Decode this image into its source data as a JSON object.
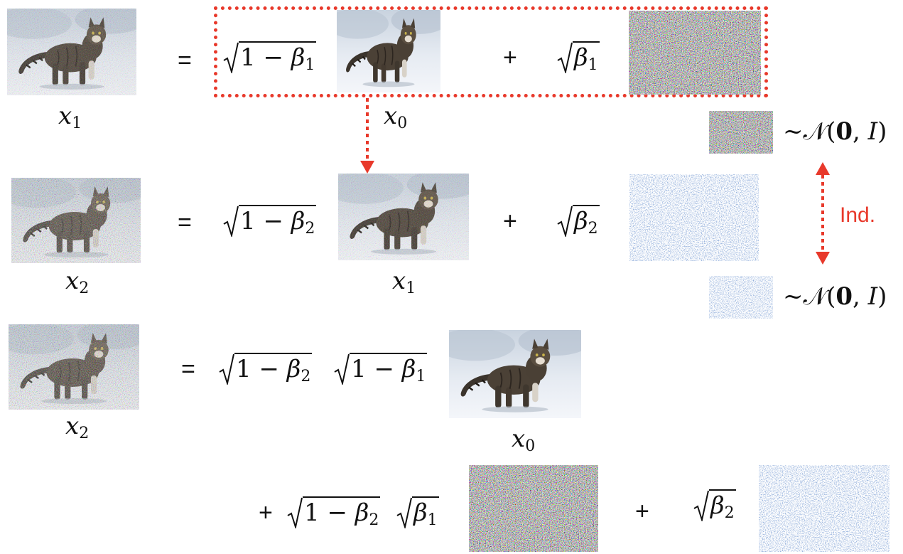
{
  "rows": {
    "row1": {
      "lhs_label": {
        "letter": "x",
        "sub": "1"
      },
      "equals": "=",
      "coef1": {
        "text": "1 − ",
        "beta": "β",
        "sub": "1"
      },
      "img_label": {
        "letter": "x",
        "sub": "0"
      },
      "plus": "+",
      "coef2": {
        "beta": "β",
        "sub": "1"
      }
    },
    "row2": {
      "lhs_label": {
        "letter": "x",
        "sub": "2"
      },
      "equals": "=",
      "coef1": {
        "text": "1 − ",
        "beta": "β",
        "sub": "2"
      },
      "img_label": {
        "letter": "x",
        "sub": "1"
      },
      "plus": "+",
      "coef2": {
        "beta": "β",
        "sub": "2"
      }
    },
    "row3": {
      "lhs_label": {
        "letter": "x",
        "sub": "2"
      },
      "equals": "=",
      "coef1": {
        "text": "1 − ",
        "beta": "β",
        "sub": "2"
      },
      "coef1b": {
        "text": "1 − ",
        "beta": "β",
        "sub": "1"
      },
      "img_label": {
        "letter": "x",
        "sub": "0"
      }
    },
    "row4": {
      "plus1": "+",
      "coef1": {
        "text": "1 − ",
        "beta": "β",
        "sub": "2"
      },
      "coef1b": {
        "beta": "β",
        "sub": "1"
      },
      "plus2": "+",
      "coef2": {
        "beta": "β",
        "sub": "2"
      }
    }
  },
  "side": {
    "dist1": {
      "tilde": "~",
      "N": "𝒩",
      "open": "(",
      "zero": "0",
      "comma": ", ",
      "I": "I",
      "close": ")"
    },
    "dist2": {
      "tilde": "~",
      "N": "𝒩",
      "open": "(",
      "zero": "0",
      "comma": ", ",
      "I": "I",
      "close": ")"
    },
    "ind_label": "Ind."
  },
  "colors": {
    "accent_red": "#e8392b",
    "blue_noise": "#4a6fb5"
  },
  "icons": {
    "cat_photo": "cat-photo",
    "color_noise": "color-noise-image",
    "blue_noise": "blue-noise-image"
  }
}
